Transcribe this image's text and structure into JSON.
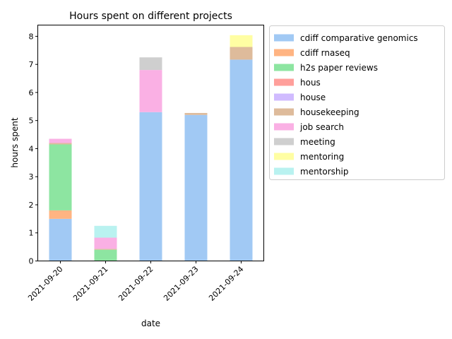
{
  "chart_data": {
    "type": "bar",
    "stacked": true,
    "title": "Hours spent on different projects",
    "xlabel": "date",
    "ylabel": "hours spent",
    "ylim": [
      0,
      8.4
    ],
    "yticks": [
      0,
      1,
      2,
      3,
      4,
      5,
      6,
      7,
      8
    ],
    "categories": [
      "2021-09-20",
      "2021-09-21",
      "2021-09-22",
      "2021-09-23",
      "2021-09-24"
    ],
    "legend_position": "outside-right",
    "grid": false,
    "series": [
      {
        "name": "cdiff comparative genomics",
        "color": "#a1c9f4",
        "values": [
          1.5,
          0,
          5.3,
          5.2,
          7.17
        ]
      },
      {
        "name": "cdiff rnaseq",
        "color": "#ffb482",
        "values": [
          0.3,
          0,
          0,
          0,
          0
        ]
      },
      {
        "name": "h2s paper reviews",
        "color": "#8de5a1",
        "values": [
          2.35,
          0.4,
          0,
          0,
          0
        ]
      },
      {
        "name": "hous",
        "color": "#ff9f9b",
        "values": [
          0,
          0,
          0,
          0,
          0
        ]
      },
      {
        "name": "house",
        "color": "#d0bbff",
        "values": [
          0,
          0,
          0,
          0,
          0
        ]
      },
      {
        "name": "housekeeping",
        "color": "#debb9b",
        "values": [
          0.05,
          0.03,
          0,
          0.07,
          0.45
        ]
      },
      {
        "name": "job search",
        "color": "#fab0e4",
        "values": [
          0.15,
          0.4,
          1.5,
          0,
          0
        ]
      },
      {
        "name": "meeting",
        "color": "#cfcfcf",
        "values": [
          0,
          0,
          0.45,
          0,
          0
        ]
      },
      {
        "name": "mentoring",
        "color": "#fffea3",
        "values": [
          0,
          0,
          0,
          0,
          0.42
        ]
      },
      {
        "name": "mentorship",
        "color": "#b9f2f0",
        "values": [
          0,
          0.42,
          0,
          0,
          0
        ]
      }
    ]
  }
}
